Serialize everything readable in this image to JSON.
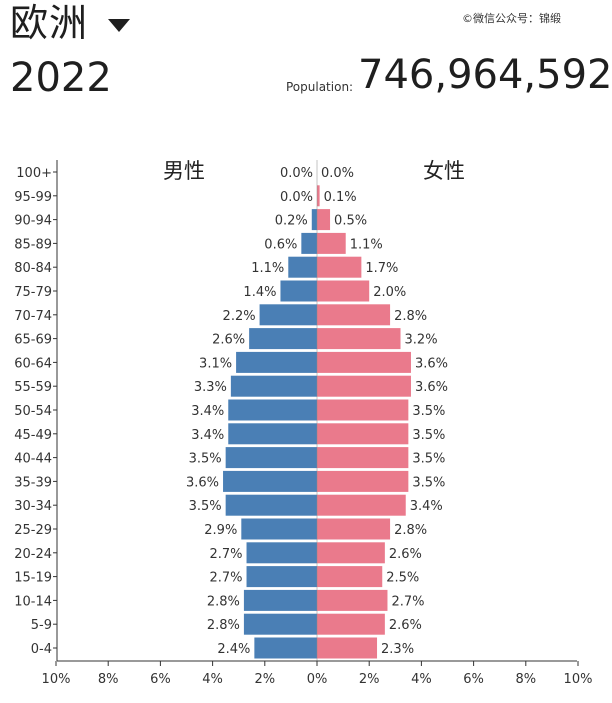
{
  "header": {
    "region": "欧洲",
    "year": "2022",
    "population_label": "Population:",
    "population_value": "746,964,592",
    "watermark": "©微信公众号：锦缎"
  },
  "chart_data": {
    "type": "bar",
    "orientation": "horizontal",
    "subtype": "population-pyramid",
    "categories": [
      "100+",
      "95-99",
      "90-94",
      "85-89",
      "80-84",
      "75-79",
      "70-74",
      "65-69",
      "60-64",
      "55-59",
      "50-54",
      "45-49",
      "40-44",
      "35-39",
      "30-34",
      "25-29",
      "20-24",
      "15-19",
      "10-14",
      "5-9",
      "0-4"
    ],
    "series": [
      {
        "name": "男性",
        "color": "#4a7fb5",
        "values": [
          0.0,
          0.0,
          0.2,
          0.6,
          1.1,
          1.4,
          2.2,
          2.6,
          3.1,
          3.3,
          3.4,
          3.4,
          3.5,
          3.6,
          3.5,
          2.9,
          2.7,
          2.7,
          2.8,
          2.8,
          2.4
        ],
        "labels": [
          "0.0%",
          "0.0%",
          "0.2%",
          "0.6%",
          "1.1%",
          "1.4%",
          "2.2%",
          "2.6%",
          "3.1%",
          "3.3%",
          "3.4%",
          "3.4%",
          "3.5%",
          "3.6%",
          "3.5%",
          "2.9%",
          "2.7%",
          "2.7%",
          "2.8%",
          "2.8%",
          "2.4%"
        ]
      },
      {
        "name": "女性",
        "color": "#ea7a8c",
        "values": [
          0.0,
          0.1,
          0.5,
          1.1,
          1.7,
          2.0,
          2.8,
          3.2,
          3.6,
          3.6,
          3.5,
          3.5,
          3.5,
          3.5,
          3.4,
          2.8,
          2.6,
          2.5,
          2.7,
          2.6,
          2.3
        ],
        "labels": [
          "0.0%",
          "0.1%",
          "0.5%",
          "1.1%",
          "1.7%",
          "2.0%",
          "2.8%",
          "3.2%",
          "3.6%",
          "3.6%",
          "3.5%",
          "3.5%",
          "3.5%",
          "3.5%",
          "3.4%",
          "2.8%",
          "2.6%",
          "2.5%",
          "2.7%",
          "2.6%",
          "2.3%"
        ]
      }
    ],
    "xlim": [
      -10,
      10
    ],
    "xticks": [
      "10%",
      "8%",
      "6%",
      "4%",
      "2%",
      "0%",
      "2%",
      "4%",
      "6%",
      "8%",
      "10%"
    ],
    "grid": false,
    "legend": "none"
  }
}
